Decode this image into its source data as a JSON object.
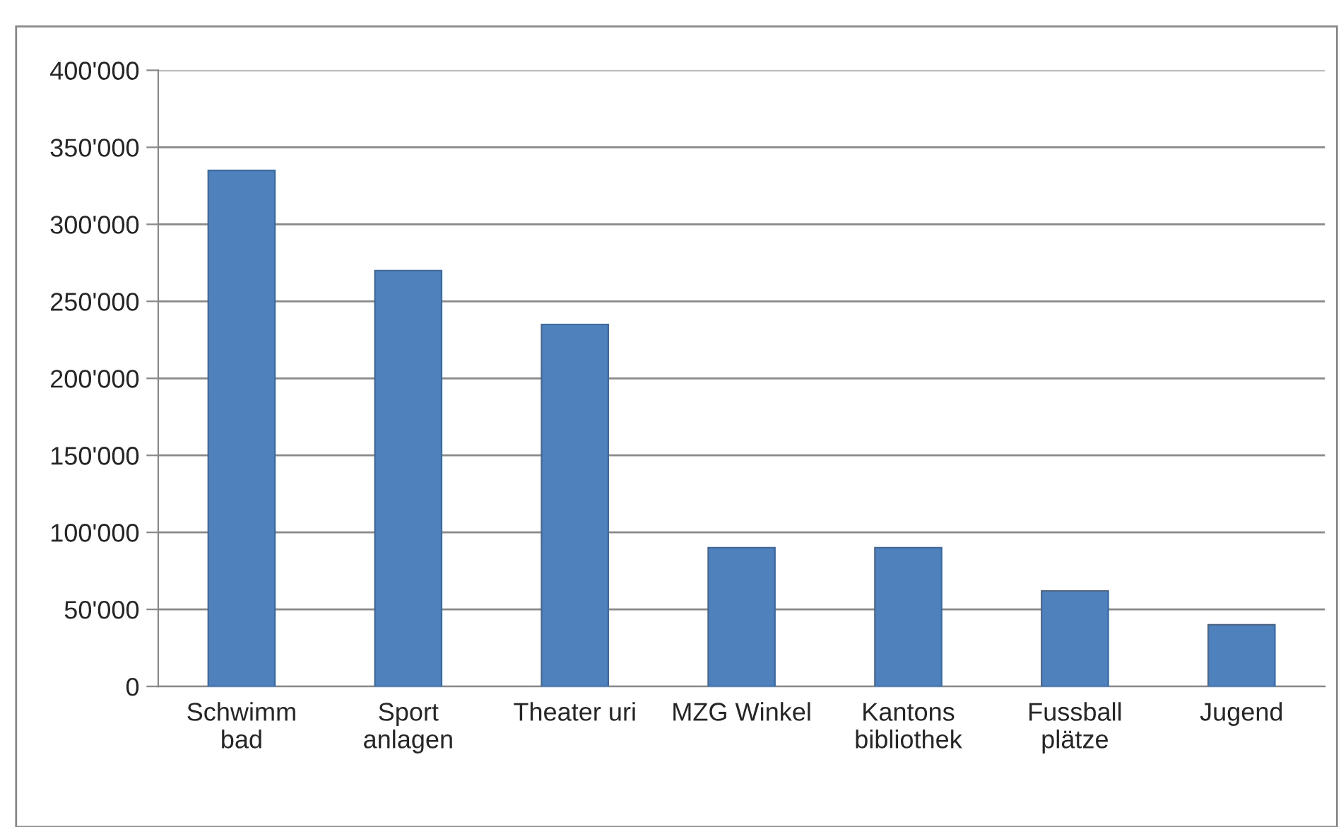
{
  "chart_data": {
    "type": "bar",
    "categories": [
      "Schwimm\nbad",
      "Sport\nanlagen",
      "Theater uri",
      "MZG Winkel",
      "Kantons\nbibliothek",
      "Fussball\nplätze",
      "Jugend"
    ],
    "values": [
      335000,
      270000,
      235000,
      90000,
      90000,
      62000,
      40000
    ],
    "color": "#4f81bd",
    "ylim": [
      0,
      400000
    ],
    "yticks": [
      {
        "value": 0,
        "label": "0"
      },
      {
        "value": 50000,
        "label": "50'000"
      },
      {
        "value": 100000,
        "label": "100'000"
      },
      {
        "value": 150000,
        "label": "150'000"
      },
      {
        "value": 200000,
        "label": "200'000"
      },
      {
        "value": 250000,
        "label": "250'000"
      },
      {
        "value": 300000,
        "label": "300'000"
      },
      {
        "value": 350000,
        "label": "350'000"
      },
      {
        "value": 400000,
        "label": "400'000"
      }
    ],
    "grid": "y"
  }
}
